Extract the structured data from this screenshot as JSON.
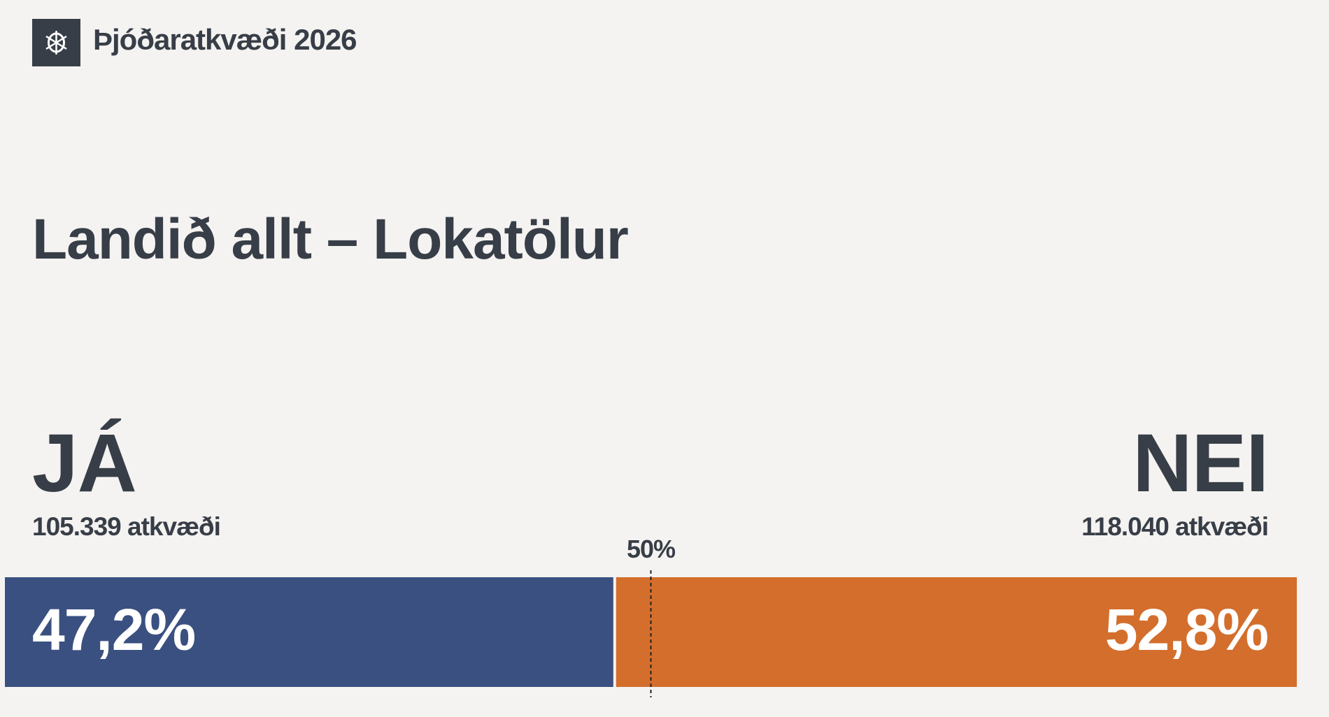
{
  "header": {
    "title": "Þjóðaratkvæði 2026"
  },
  "chart_data": {
    "type": "split",
    "title": "Landið allt – Lokatölur",
    "xlim": [
      0,
      100
    ],
    "reference": {
      "value": 50,
      "label": "50%"
    },
    "series": [
      {
        "name": "JÁ",
        "color": "#3a5080",
        "values": [
          47.2
        ],
        "value_labels": [
          "47,2%"
        ],
        "votes": 105339,
        "votes_label": "105.339 atkvæði"
      },
      {
        "name": "NEI",
        "color": "#d46e2c",
        "values": [
          52.8
        ],
        "value_labels": [
          "52,8%"
        ],
        "votes": 118040,
        "votes_label": "118.040 atkvæði"
      }
    ]
  }
}
